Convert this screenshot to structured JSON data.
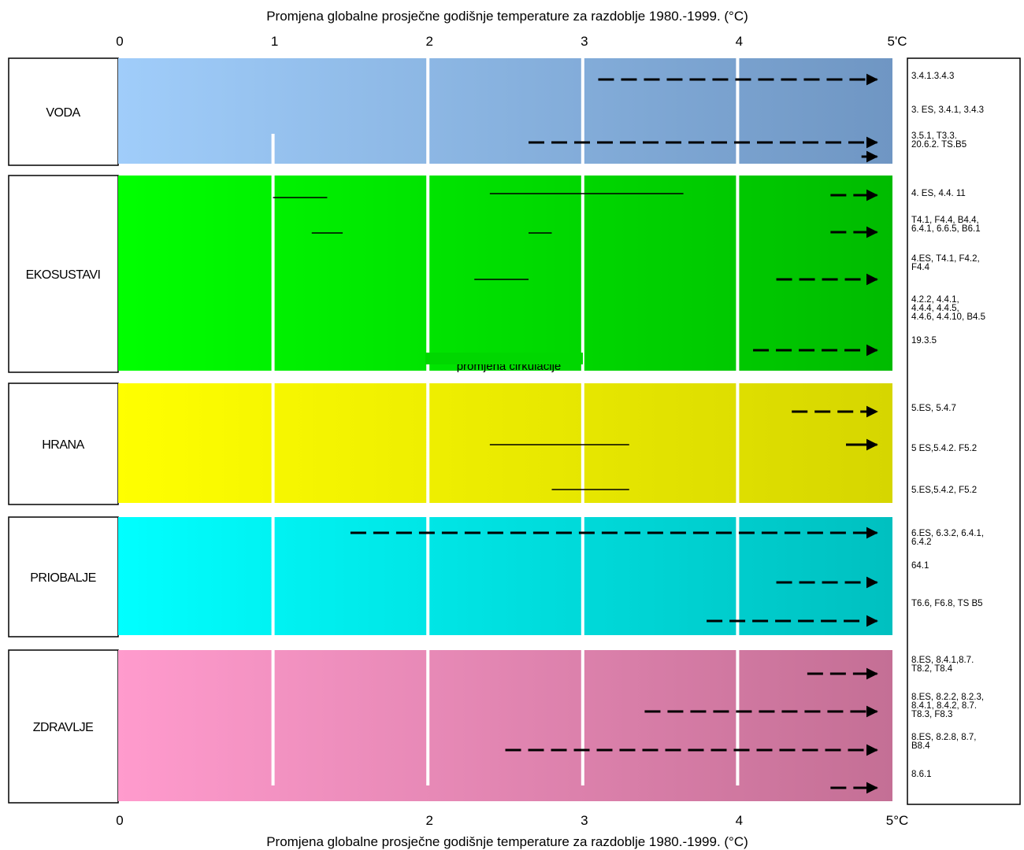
{
  "chart_data": {
    "type": "bar",
    "title": "Promjena globalne prosječne godišnje temperature za razdoblje 1980.-1999. (°C)",
    "xlabel_top": "Promjena globalne prosječne godišnje temperature za razdoblje 1980.-1999. (°C)",
    "xlabel_bottom": "Promjena globalne prosječne godišnje temperature za razdoblje 1980.-1999. (°C)",
    "xlim": [
      0,
      5
    ],
    "top_ticks": [
      "0",
      "1",
      "2",
      "3",
      "4",
      "5'C"
    ],
    "bottom_ticks": [
      "0",
      "",
      "2",
      "3",
      "4",
      "5°C"
    ],
    "grid": true,
    "faint_text": "promjena cirkulacije",
    "sectors": [
      {
        "label": "VODA",
        "color_start": "#a0cdfa",
        "color_end": "#6f96c3",
        "lines": [
          {
            "start": 3.1,
            "style": "dashed-arrow",
            "ref": "3.4.1.3.4.3"
          },
          {
            "start": 2.65,
            "style": "dashed-arrow",
            "ref": "3. ES, 3.4.1, 3.4.3"
          },
          {
            "start": 4.8,
            "style": "arrow",
            "ref": "3.5.1, T3.3. 20.6.2. TS.B5"
          }
        ],
        "segments": []
      },
      {
        "label": "EKOSUSTAVI",
        "color_start": "#00ff00",
        "color_end": "#00bb00",
        "lines": [
          {
            "start": 4.6,
            "style": "dashed-arrow",
            "ref": "4. ES, 4.4. 11"
          },
          {
            "start": 4.6,
            "style": "dashed-arrow",
            "ref": "T4.1, F4.4, B4.4, 6.4.1, 6.6.5, B6.1"
          },
          {
            "start": 4.25,
            "style": "dashed-arrow",
            "ref": "4.ES, T4.1, F4.2, F4.4"
          },
          {
            "start": 4.1,
            "style": "dashed-arrow",
            "ref": "4.2.2, 4.4.1, 4.4.4, 4.4.5, 4.4.6, 4.4.10, B4.5"
          }
        ],
        "extra_ref": "19.3.5",
        "segments": [
          {
            "from": 1.0,
            "to": 1.35
          },
          {
            "from": 2.4,
            "to": 3.65
          },
          {
            "from": 1.25,
            "to": 1.45
          },
          {
            "from": 2.65,
            "to": 2.8
          },
          {
            "from": 2.3,
            "to": 2.65
          }
        ]
      },
      {
        "label": "HRANA",
        "color_start": "#ffff00",
        "color_end": "#d6d600",
        "lines": [
          {
            "start": 4.35,
            "style": "dashed-arrow",
            "ref": "5.ES, 5.4.7"
          },
          {
            "start": 4.7,
            "style": "arrow",
            "ref": "5 ES,5.4.2. F5.2"
          }
        ],
        "segments": [
          {
            "from": 2.4,
            "to": 3.3
          },
          {
            "from": 2.8,
            "to": 3.3
          }
        ],
        "extra_ref": "5.ES,5.4.2, F5.2"
      },
      {
        "label": "PRIOBALJE",
        "color_start": "#00ffff",
        "color_end": "#00c0c0",
        "lines": [
          {
            "start": 1.5,
            "style": "dashed-arrow",
            "ref": "6.ES, 6.3.2, 6.4.1, 6.4.2"
          },
          {
            "start": 4.25,
            "style": "dashed-arrow",
            "ref": "64.1"
          },
          {
            "start": 3.8,
            "style": "dashed-arrow",
            "ref": "T6.6, F6.8, TS B5"
          }
        ],
        "segments": []
      },
      {
        "label": "ZDRAVLJE",
        "color_start": "#ff9bcd",
        "color_end": "#c46f95",
        "lines": [
          {
            "start": 4.45,
            "style": "dashed-arrow",
            "ref": "8.ES, 8.4.1,8.7. T8.2, T8.4"
          },
          {
            "start": 3.4,
            "style": "dashed-arrow",
            "ref": "8.ES, 8.2.2, 8.2.3, 8.4.1, 8.4.2, 8.7. T8.3, F8.3"
          },
          {
            "start": 2.5,
            "style": "dashed-arrow",
            "ref": "8.ES, 8.2.8, 8.7, B8.4"
          },
          {
            "start": 4.6,
            "style": "dashed-arrow",
            "ref": "8.6.1"
          }
        ],
        "segments": []
      }
    ]
  }
}
